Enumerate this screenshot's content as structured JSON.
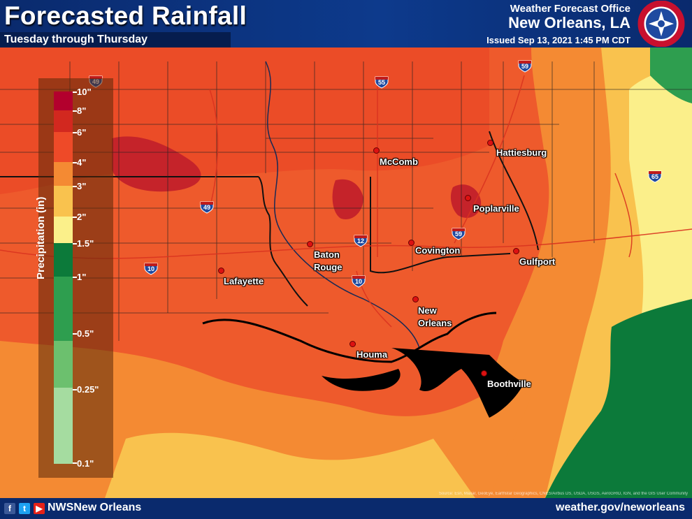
{
  "header": {
    "title": "Forecasted Rainfall",
    "subtitle": "Tuesday through Thursday",
    "office_label": "Weather Forecast Office",
    "office_city": "New Orleans, LA",
    "issued": "Issued Sep 13, 2021 1:45 PM CDT",
    "logo_text": "NATIONAL WEATHER SERVICE",
    "logo_icon": "nws-logo-icon"
  },
  "legend": {
    "title": "Precipitation (in)",
    "ticks": [
      "10\"",
      "8\"",
      "6\"",
      "4\"",
      "3\"",
      "2\"",
      "1.5\"",
      "1\"",
      "0.5\"",
      "0.25\"",
      "0.1\""
    ],
    "colors": [
      "#b3002d",
      "#d2281f",
      "#ee4a28",
      "#f48a33",
      "#f9c24e",
      "#fbf08a",
      "#0c7a3a",
      "#2e9e4f",
      "#6cc06e",
      "#a5dca0"
    ]
  },
  "cities": [
    {
      "name": "McComb"
    },
    {
      "name": "Hattiesburg"
    },
    {
      "name": "Poplarville"
    },
    {
      "name": "Baton Rouge"
    },
    {
      "name": "Covington"
    },
    {
      "name": "Gulfport"
    },
    {
      "name": "Lafayette"
    },
    {
      "name": "New Orleans"
    },
    {
      "name": "Houma"
    },
    {
      "name": "Boothville"
    }
  ],
  "interstates": [
    "49",
    "55",
    "59",
    "65",
    "49",
    "12",
    "59",
    "10",
    "10"
  ],
  "source": "Source: Esri, Maxar, GeoEye, Earthstar Geographics, CNES/Airbus DS, USDA, USGS, AeroGRID, IGN, and the GIS User Community",
  "footer": {
    "handle": "NWSNew Orleans",
    "website": "weather.gov/neworleans",
    "social_icons": [
      "facebook-icon",
      "twitter-icon",
      "youtube-icon"
    ]
  }
}
